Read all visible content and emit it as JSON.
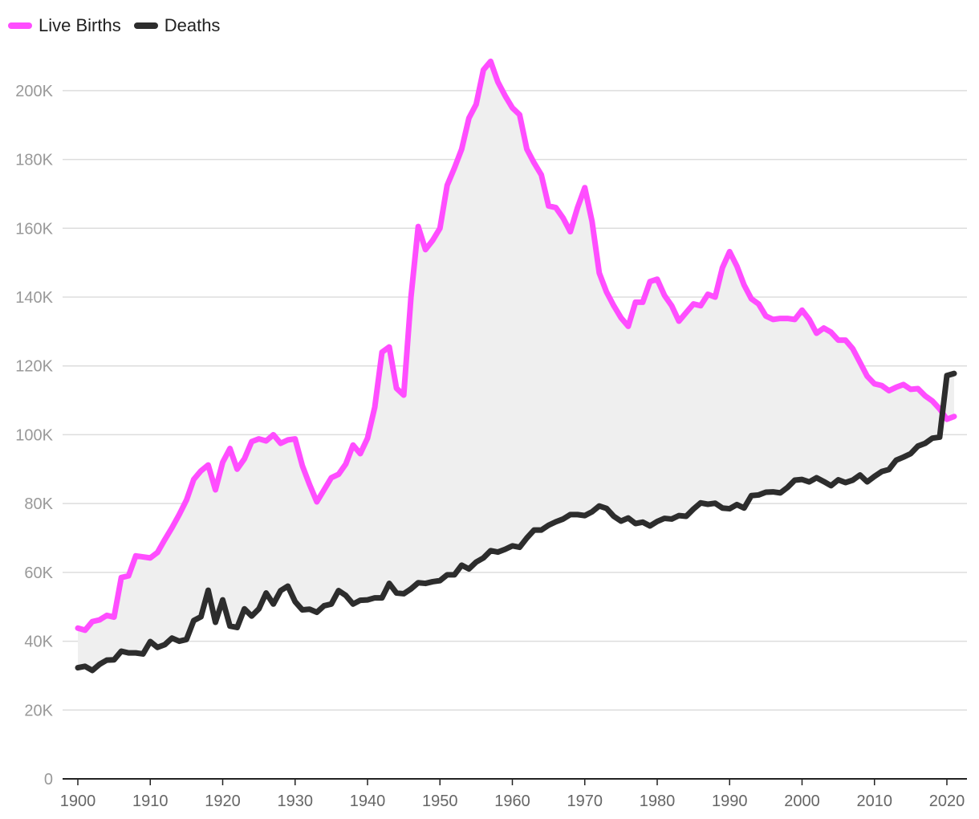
{
  "chart_data": {
    "type": "line",
    "title": "",
    "xlabel": "",
    "ylabel": "",
    "xlim": [
      1900,
      2021
    ],
    "ylim": [
      0,
      210000
    ],
    "grid": true,
    "legend_position": "top-left",
    "area_between_series": true,
    "y_ticks": [
      {
        "value": 0,
        "label": "0"
      },
      {
        "value": 20000,
        "label": "20K"
      },
      {
        "value": 40000,
        "label": "40K"
      },
      {
        "value": 60000,
        "label": "60K"
      },
      {
        "value": 80000,
        "label": "80K"
      },
      {
        "value": 100000,
        "label": "100K"
      },
      {
        "value": 120000,
        "label": "120K"
      },
      {
        "value": 140000,
        "label": "140K"
      },
      {
        "value": 160000,
        "label": "160K"
      },
      {
        "value": 180000,
        "label": "180K"
      },
      {
        "value": 200000,
        "label": "200K"
      }
    ],
    "x_ticks": [
      {
        "value": 1900,
        "label": "1900"
      },
      {
        "value": 1910,
        "label": "1910"
      },
      {
        "value": 1920,
        "label": "1920"
      },
      {
        "value": 1930,
        "label": "1930"
      },
      {
        "value": 1940,
        "label": "1940"
      },
      {
        "value": 1950,
        "label": "1950"
      },
      {
        "value": 1960,
        "label": "1960"
      },
      {
        "value": 1970,
        "label": "1970"
      },
      {
        "value": 1980,
        "label": "1980"
      },
      {
        "value": 1990,
        "label": "1990"
      },
      {
        "value": 2000,
        "label": "2000"
      },
      {
        "value": 2010,
        "label": "2010"
      },
      {
        "value": 2020,
        "label": "2020"
      }
    ],
    "x_start": 1900,
    "series": [
      {
        "name": "Live Births",
        "color": "#ff4dff",
        "values": [
          43800,
          43200,
          45700,
          46200,
          47500,
          47000,
          58500,
          59000,
          64800,
          64500,
          64200,
          65800,
          69500,
          73000,
          76800,
          81000,
          87000,
          89500,
          91200,
          84000,
          92000,
          96000,
          90000,
          93000,
          98000,
          98800,
          98200,
          100000,
          97500,
          98500,
          98800,
          91000,
          85500,
          80500,
          84000,
          87500,
          88500,
          91500,
          97000,
          94500,
          99000,
          108000,
          124000,
          125500,
          113500,
          111500,
          140000,
          160500,
          153800,
          156500,
          160000,
          172500,
          177500,
          183000,
          192000,
          196000,
          206000,
          208500,
          202500,
          198500,
          195000,
          193000,
          183000,
          179000,
          175500,
          166500,
          166000,
          163000,
          159000,
          166000,
          171800,
          162000,
          147000,
          141500,
          137500,
          134000,
          131500,
          138500,
          138500,
          144500,
          145200,
          140500,
          137500,
          133000,
          135500,
          138000,
          137500,
          140800,
          140000,
          148500,
          153200,
          149000,
          143500,
          139500,
          138000,
          134500,
          133500,
          133800,
          133800,
          133500,
          136200,
          133500,
          129500,
          131000,
          129800,
          127500,
          127500,
          125000,
          121000,
          117000,
          114800,
          114300,
          112800,
          113800,
          114600,
          113200,
          113400,
          111300,
          109800,
          107500,
          104500,
          105300
        ]
      },
      {
        "name": "Deaths",
        "color": "#2d2d2d",
        "values": [
          32300,
          32700,
          31500,
          33300,
          34500,
          34600,
          37100,
          36600,
          36600,
          36300,
          39900,
          38200,
          39000,
          40900,
          40000,
          40500,
          46000,
          47100,
          54800,
          45500,
          52000,
          44400,
          44000,
          49400,
          47300,
          49400,
          54000,
          50800,
          54700,
          56000,
          51500,
          49100,
          49300,
          48400,
          50300,
          50800,
          54700,
          53300,
          50800,
          51900,
          52000,
          52600,
          52600,
          56800,
          54000,
          53800,
          55200,
          57000,
          56800,
          57300,
          57600,
          59300,
          59300,
          62100,
          61000,
          63000,
          64200,
          66300,
          65900,
          66700,
          67700,
          67300,
          70000,
          72300,
          72300,
          73700,
          74700,
          75500,
          76800,
          76800,
          76500,
          77600,
          79300,
          78600,
          76300,
          74900,
          75800,
          74200,
          74600,
          73500,
          74800,
          75700,
          75500,
          76500,
          76300,
          78400,
          80200,
          79800,
          80100,
          78700,
          78500,
          79700,
          78700,
          82300,
          82500,
          83300,
          83400,
          83100,
          84700,
          86800,
          87000,
          86300,
          87500,
          86400,
          85200,
          86900,
          86100,
          86800,
          88300,
          86300,
          87900,
          89300,
          89900,
          92600,
          93500,
          94500,
          96700,
          97500,
          99000,
          99300,
          117200,
          117800
        ]
      }
    ]
  }
}
